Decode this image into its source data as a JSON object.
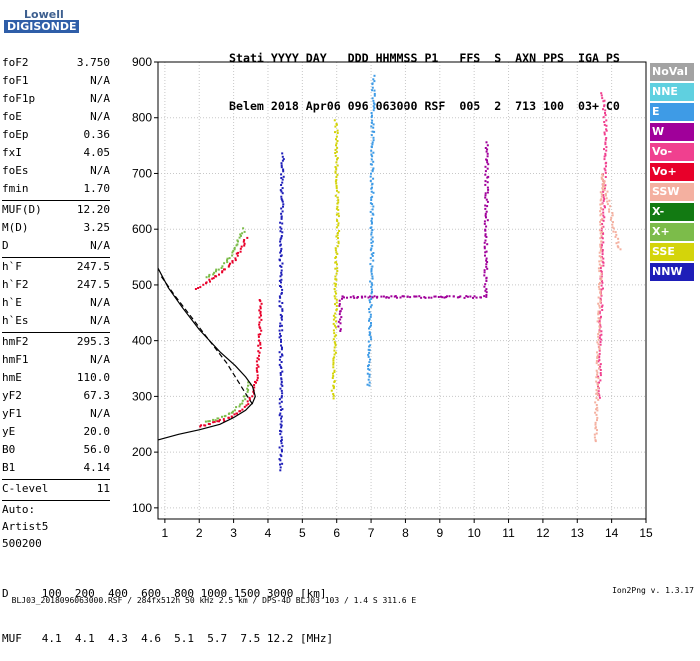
{
  "logo": {
    "brand": "Lowell",
    "product": "DIGISONDE"
  },
  "header": {
    "line1": "Stati YYYY DAY   DDD HHMMSS P1   FFS  S  AXN PPS  IGA PS",
    "line2": "Belem 2018 Apr06 096 063000 RSF  005  2  713 100  03+ C0"
  },
  "params": [
    {
      "name": "foF2",
      "value": "3.750"
    },
    {
      "name": "foF1",
      "value": "N/A"
    },
    {
      "name": "foF1p",
      "value": "N/A"
    },
    {
      "name": "foE",
      "value": "N/A"
    },
    {
      "name": "foEp",
      "value": "0.36"
    },
    {
      "name": "fxI",
      "value": "4.05"
    },
    {
      "name": "foEs",
      "value": "N/A"
    },
    {
      "name": "fmin",
      "value": "1.70"
    },
    {
      "name": "MUF(D)",
      "value": "12.20"
    },
    {
      "name": "M(D)",
      "value": "3.25"
    },
    {
      "name": "D",
      "value": "N/A"
    },
    {
      "name": "h`F",
      "value": "247.5"
    },
    {
      "name": "h`F2",
      "value": "247.5"
    },
    {
      "name": "h`E",
      "value": "N/A"
    },
    {
      "name": "h`Es",
      "value": "N/A"
    },
    {
      "name": "hmF2",
      "value": "295.3"
    },
    {
      "name": "hmF1",
      "value": "N/A"
    },
    {
      "name": "hmE",
      "value": "110.0"
    },
    {
      "name": "yF2",
      "value": "67.3"
    },
    {
      "name": "yF1",
      "value": "N/A"
    },
    {
      "name": "yE",
      "value": "20.0"
    },
    {
      "name": "B0",
      "value": "56.0"
    },
    {
      "name": "B1",
      "value": "4.14"
    },
    {
      "name": "C-level",
      "value": "11"
    }
  ],
  "auto": {
    "line1": "Auto:",
    "line2": "Artist5",
    "line3": "500200"
  },
  "legend": [
    {
      "label": "NoVal",
      "color": "#a3a3a3"
    },
    {
      "label": "NNE",
      "color": "#5fd0e0"
    },
    {
      "label": "E",
      "color": "#3e9be6"
    },
    {
      "label": "W",
      "color": "#a0009a"
    },
    {
      "label": "Vo-",
      "color": "#f0408f"
    },
    {
      "label": "Vo+",
      "color": "#e8002a"
    },
    {
      "label": "SSW",
      "color": "#f4b0a0"
    },
    {
      "label": "X-",
      "color": "#127a12"
    },
    {
      "label": "X+",
      "color": "#7cbc4a"
    },
    {
      "label": "SSE",
      "color": "#d4d40a"
    },
    {
      "label": "NNW",
      "color": "#1e1eb8"
    }
  ],
  "muf_table": {
    "line1": "D     100  200  400  600  800 1000 1500 3000 [km]",
    "line2": "MUF   4.1  4.1  4.3  4.6  5.1  5.7  7.5 12.2 [MHz]"
  },
  "footer": {
    "left": "BLJ03_2018096063000.RSF / 284fx512h 50 kHz 2.5 km / DPS-4D BLJ03 103 / 1.4 S 311.6 E",
    "right": "Ion2Png v. 1.3.17"
  },
  "chart_data": {
    "type": "scatter",
    "title": "",
    "xlabel": "",
    "ylabel": "",
    "xlim": [
      0.8,
      15.0
    ],
    "ylim": [
      80,
      900
    ],
    "x_ticks": [
      1,
      2,
      3,
      4,
      5,
      6,
      7,
      8,
      9,
      10,
      11,
      12,
      13,
      14,
      15
    ],
    "y_ticks": [
      100,
      200,
      300,
      400,
      500,
      600,
      700,
      800,
      900
    ],
    "grid": true,
    "traces": [
      {
        "name": "O-trace F2 low",
        "color": "#e8002a",
        "points": [
          [
            2.0,
            248
          ],
          [
            2.3,
            253
          ],
          [
            2.6,
            258
          ],
          [
            2.9,
            265
          ],
          [
            3.1,
            272
          ],
          [
            3.3,
            282
          ],
          [
            3.45,
            295
          ],
          [
            3.55,
            310
          ],
          [
            3.65,
            340
          ],
          [
            3.72,
            380
          ],
          [
            3.75,
            430
          ],
          [
            3.77,
            480
          ]
        ]
      },
      {
        "name": "X-trace F2 low",
        "color": "#7cbc4a",
        "points": [
          [
            2.2,
            255
          ],
          [
            2.5,
            262
          ],
          [
            2.8,
            270
          ],
          [
            3.0,
            278
          ],
          [
            3.2,
            290
          ],
          [
            3.35,
            305
          ],
          [
            3.45,
            330
          ]
        ]
      },
      {
        "name": "O-trace F2 multi",
        "color": "#e8002a",
        "points": [
          [
            1.9,
            495
          ],
          [
            2.2,
            506
          ],
          [
            2.5,
            518
          ],
          [
            2.8,
            533
          ],
          [
            3.0,
            548
          ],
          [
            3.2,
            566
          ],
          [
            3.35,
            590
          ]
        ]
      },
      {
        "name": "X-trace F2 multi",
        "color": "#7cbc4a",
        "points": [
          [
            2.2,
            515
          ],
          [
            2.5,
            528
          ],
          [
            2.8,
            545
          ],
          [
            3.0,
            565
          ],
          [
            3.15,
            585
          ],
          [
            3.3,
            605
          ]
        ]
      },
      {
        "name": "SSE column",
        "color": "#d4d40a",
        "points": [
          [
            5.85,
            300
          ],
          [
            5.9,
            330
          ],
          [
            5.95,
            510
          ],
          [
            5.98,
            560
          ],
          [
            6.0,
            600
          ],
          [
            5.95,
            800
          ]
        ]
      },
      {
        "name": "E column",
        "color": "#3e9be6",
        "points": [
          [
            6.9,
            320
          ],
          [
            6.95,
            450
          ],
          [
            7.0,
            560
          ],
          [
            7.0,
            720
          ],
          [
            7.05,
            880
          ]
        ]
      },
      {
        "name": "W column",
        "color": "#a0009a",
        "points": [
          [
            6.05,
            420
          ],
          [
            6.1,
            480
          ],
          [
            10.3,
            480
          ],
          [
            10.35,
            760
          ]
        ]
      },
      {
        "name": "Vo- traces",
        "color": "#f0408f",
        "points": [
          [
            13.6,
            300
          ],
          [
            13.7,
            560
          ],
          [
            13.8,
            790
          ],
          [
            13.7,
            850
          ]
        ]
      },
      {
        "name": "SSW traces",
        "color": "#f4b0a0",
        "points": [
          [
            13.5,
            220
          ],
          [
            13.6,
            420
          ],
          [
            13.7,
            700
          ],
          [
            14.2,
            560
          ]
        ]
      },
      {
        "name": "NNW column",
        "color": "#1e1eb8",
        "points": [
          [
            4.35,
            170
          ],
          [
            4.35,
            560
          ],
          [
            4.4,
            740
          ]
        ]
      }
    ],
    "profile_curves": [
      {
        "name": "solid profile",
        "style": "solid",
        "color": "#000000",
        "points": [
          [
            0.8,
            222
          ],
          [
            1.4,
            232
          ],
          [
            2.0,
            240
          ],
          [
            2.6,
            250
          ],
          [
            3.0,
            262
          ],
          [
            3.35,
            275
          ],
          [
            3.55,
            288
          ],
          [
            3.63,
            300
          ],
          [
            3.55,
            318
          ],
          [
            3.35,
            335
          ],
          [
            3.05,
            355
          ],
          [
            2.6,
            380
          ],
          [
            2.0,
            420
          ],
          [
            1.5,
            460
          ],
          [
            1.1,
            495
          ],
          [
            0.8,
            530
          ]
        ]
      },
      {
        "name": "dashed profile",
        "style": "dashed",
        "color": "#000000",
        "points": [
          [
            0.9,
            515
          ],
          [
            1.3,
            480
          ],
          [
            1.8,
            440
          ],
          [
            2.3,
            400
          ],
          [
            2.8,
            360
          ],
          [
            3.2,
            320
          ],
          [
            3.45,
            295
          ],
          [
            3.6,
            282
          ]
        ]
      }
    ]
  }
}
